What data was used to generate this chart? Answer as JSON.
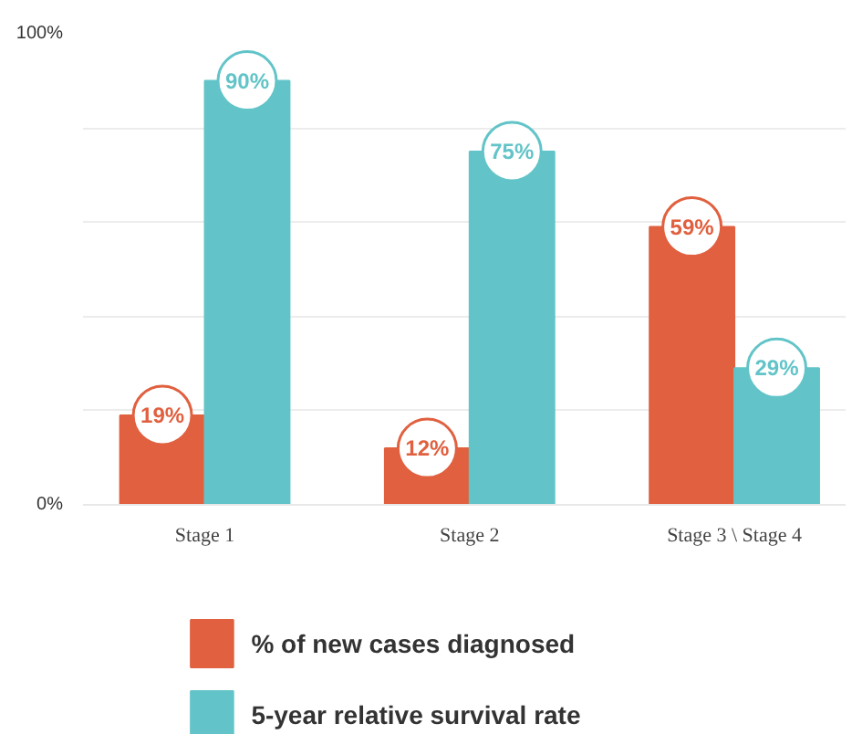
{
  "chart_data": {
    "type": "bar",
    "categories": [
      "Stage 1",
      "Stage 2",
      "Stage 3 \\ Stage 4"
    ],
    "series": [
      {
        "name": "% of new cases diagnosed",
        "color": "#e0603f",
        "values": [
          19,
          12,
          59
        ],
        "value_labels": [
          "19%",
          "12%",
          "59%"
        ]
      },
      {
        "name": "5-year relative survival rate",
        "color": "#62c4c8",
        "values": [
          90,
          75,
          29
        ],
        "value_labels": [
          "90%",
          "75%",
          "29%"
        ]
      }
    ],
    "ylim": [
      0,
      100
    ],
    "yticks": [
      {
        "value": 0,
        "label": "0%"
      },
      {
        "value": 20,
        "label": null
      },
      {
        "value": 40,
        "label": null
      },
      {
        "value": 60,
        "label": null
      },
      {
        "value": 80,
        "label": null
      },
      {
        "value": 100,
        "label": "100%"
      }
    ],
    "grid": "y",
    "legend": "bottom"
  }
}
